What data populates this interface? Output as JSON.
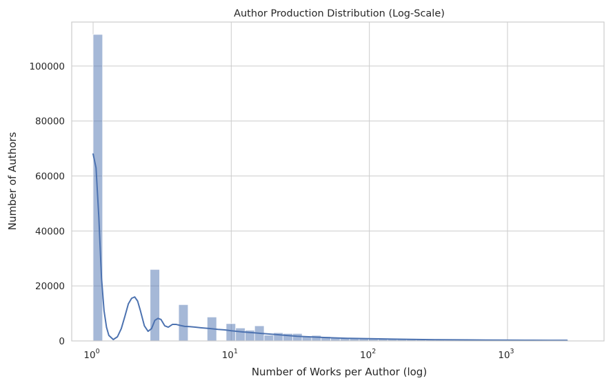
{
  "chart_data": {
    "type": "bar",
    "subtype": "histogram-with-kde",
    "title": "Author Production Distribution (Log-Scale)",
    "xlabel": "Number of Works per Author (log)",
    "ylabel": "Number of Authors",
    "x_scale": "log",
    "xlim": [
      0.7,
      5000
    ],
    "ylim": [
      0,
      116000
    ],
    "x_ticks": [
      {
        "base": "10",
        "exp": "0",
        "value": 1
      },
      {
        "base": "10",
        "exp": "1",
        "value": 10
      },
      {
        "base": "10",
        "exp": "2",
        "value": 100
      },
      {
        "base": "10",
        "exp": "3",
        "value": 1000
      }
    ],
    "y_ticks": [
      {
        "label": "0",
        "value": 0
      },
      {
        "label": "20000",
        "value": 20000
      },
      {
        "label": "40000",
        "value": 40000
      },
      {
        "label": "60000",
        "value": 60000
      },
      {
        "label": "80000",
        "value": 80000
      },
      {
        "label": "100000",
        "value": 100000
      }
    ],
    "grid": true,
    "bar_color": "#4c72b0",
    "line_color": "#4c72b0",
    "bins": {
      "min": 1,
      "max": 2750,
      "count": 50,
      "values": [
        111500,
        0,
        0,
        0,
        0,
        0,
        26000,
        0,
        0,
        13200,
        0,
        0,
        8700,
        0,
        6300,
        4700,
        3900,
        5500,
        2100,
        3000,
        2700,
        2700,
        1600,
        2000,
        1600,
        1200,
        1100,
        1100,
        1000,
        900,
        800,
        700,
        600,
        500,
        450,
        400,
        350,
        320,
        300,
        260,
        230,
        200,
        180,
        160,
        140,
        130,
        120,
        110,
        100,
        90
      ]
    },
    "kde": {
      "x": [
        1.0,
        1.05,
        1.1,
        1.15,
        1.2,
        1.25,
        1.3,
        1.4,
        1.5,
        1.6,
        1.7,
        1.8,
        1.9,
        2.0,
        2.1,
        2.2,
        2.35,
        2.5,
        2.65,
        2.8,
        2.95,
        3.1,
        3.3,
        3.5,
        3.75,
        4.0,
        4.3,
        4.6,
        5.0,
        5.5,
        6.0,
        7.0,
        8.0,
        9.0,
        10,
        12,
        15,
        20,
        25,
        30,
        40,
        50,
        70,
        100,
        150,
        200,
        300,
        500,
        700,
        1000,
        1500,
        2000,
        2700
      ],
      "y": [
        68000,
        63000,
        45000,
        23000,
        11000,
        5000,
        2000,
        500,
        1500,
        4500,
        9000,
        13500,
        15500,
        16000,
        14500,
        11000,
        5500,
        3500,
        4500,
        7500,
        8200,
        7800,
        5500,
        5000,
        6000,
        6000,
        5600,
        5300,
        5200,
        5000,
        4800,
        4500,
        4200,
        4000,
        3700,
        3300,
        2900,
        2400,
        2000,
        1700,
        1400,
        1200,
        950,
        800,
        650,
        550,
        450,
        360,
        320,
        280,
        250,
        230,
        210
      ]
    }
  }
}
